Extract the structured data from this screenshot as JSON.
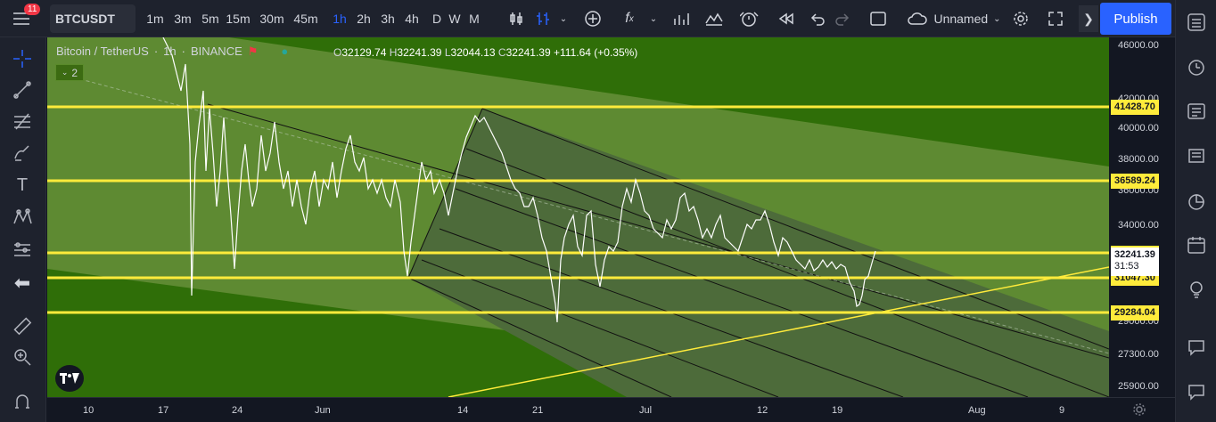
{
  "topbar": {
    "symbol": "BTCUSDT",
    "intervals": [
      "1m",
      "3m",
      "5m",
      "15m",
      "30m",
      "45m",
      "1h",
      "2h",
      "3h",
      "4h",
      "D",
      "W",
      "M"
    ],
    "active_interval": "1h",
    "layout_name": "Unnamed",
    "publish_label": "Publish",
    "notification_count": "11"
  },
  "legend": {
    "title": "Bitcoin / TetherUS",
    "interval": "1h",
    "exchange": "BINANCE",
    "o_label": "O",
    "o": "32129.74",
    "h_label": "H",
    "h": "32241.39",
    "l_label": "L",
    "l": "32044.13",
    "c_label": "C",
    "c": "32241.39",
    "change": "+111.64 (+0.35%)",
    "indicator_count": "2"
  },
  "yaxis": {
    "ticks": [
      "46000.00",
      "42000.00",
      "40000.00",
      "38000.00",
      "36000.00",
      "34000.00",
      "29000.00",
      "27300.00",
      "25900.00"
    ],
    "levels": [
      "41428.70",
      "36589.24",
      "32426.57",
      "31047.30",
      "29284.04"
    ],
    "last_price": "32241.39",
    "countdown": "31:53"
  },
  "xaxis": {
    "ticks": [
      "10",
      "17",
      "24",
      "Jun",
      "14",
      "21",
      "Jul",
      "12",
      "19",
      "Aug",
      "9"
    ]
  },
  "colors": {
    "bg_green": "#2f6e08",
    "channel_green": "#5e8a32",
    "inner_dark": "#4d6b3a",
    "level_yellow": "#ffeb3b",
    "accent": "#2962ff"
  },
  "chart_data": {
    "type": "line",
    "title": "Bitcoin / TetherUS",
    "horizontal_levels": [
      41428.7,
      36589.24,
      32426.57,
      31047.3,
      29284.04
    ],
    "last_price": 32241.39
  }
}
